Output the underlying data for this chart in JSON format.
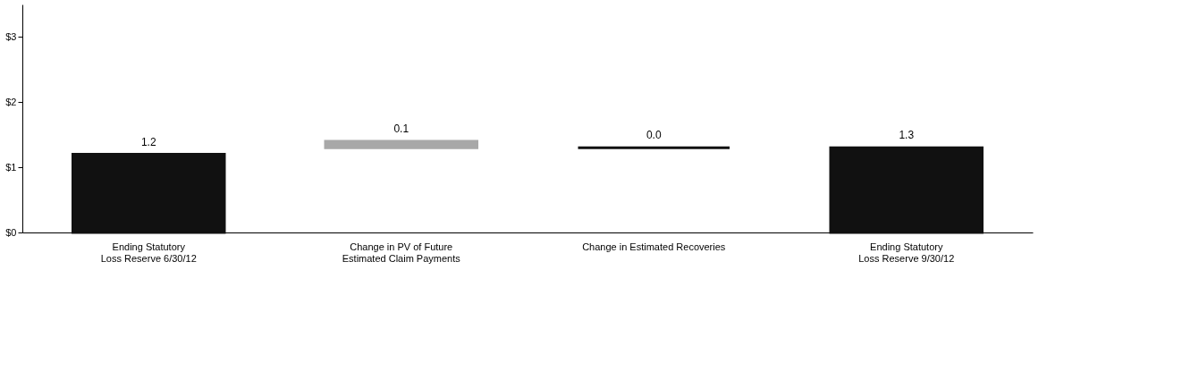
{
  "chart_data": {
    "type": "bar",
    "categories": [
      "Ending Statutory Loss Reserve 6/30/12",
      "Change in PV of Future Estimated Claim Payments",
      "Change in Estimated Recoveries",
      "Ending Statutory Loss Reserve 9/30/12"
    ],
    "values": [
      1.2,
      0.1,
      0.0,
      1.3
    ],
    "base": [
      0,
      1.3,
      1.3,
      0
    ],
    "colors": [
      "#111111",
      "#a8a8a8",
      "#111111",
      "#111111"
    ],
    "ylim": [
      0,
      3.5
    ],
    "yticks": [
      {
        "value": 0,
        "label": "$0"
      },
      {
        "value": 1,
        "label": "$1"
      },
      {
        "value": 2,
        "label": "$2"
      },
      {
        "value": 3,
        "label": "$3"
      }
    ],
    "value_labels": [
      "1.2",
      "0.1",
      "0.0",
      "1.3"
    ],
    "grid": false
  }
}
